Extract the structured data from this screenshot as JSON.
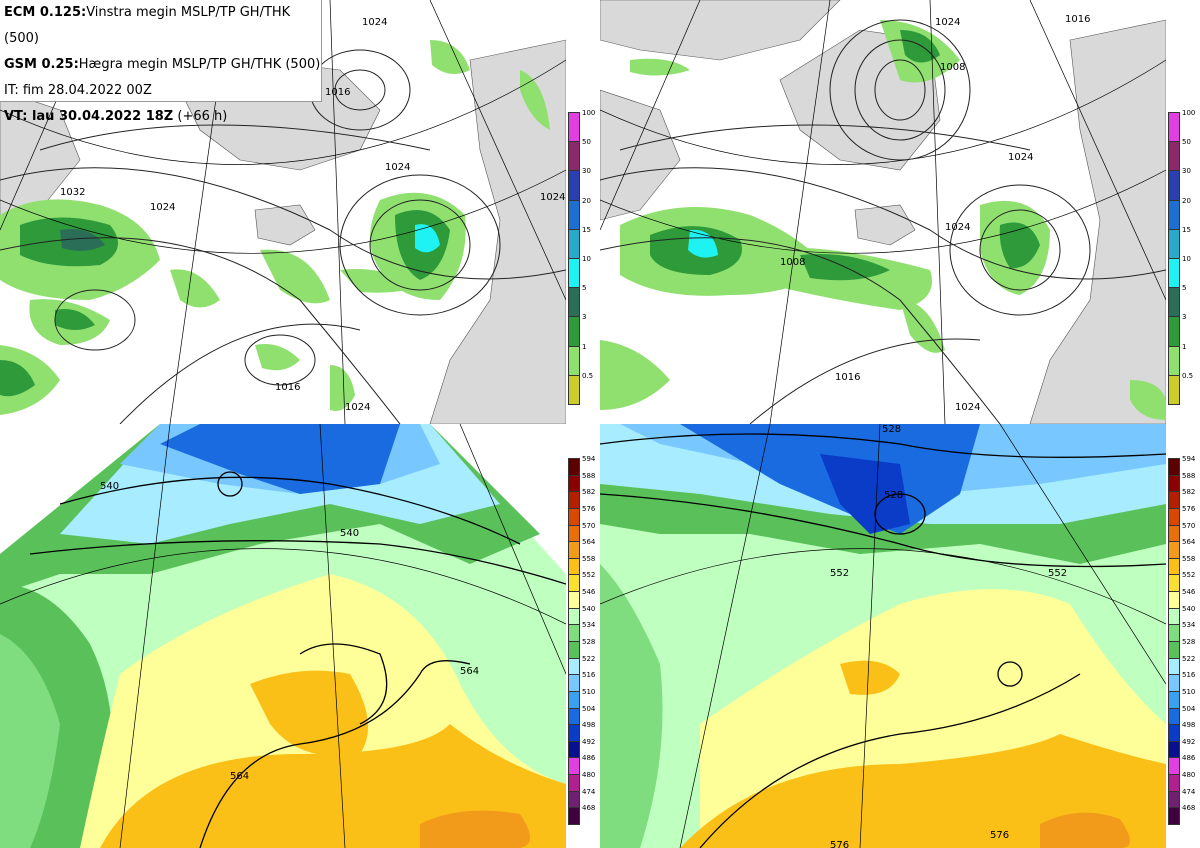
{
  "info": {
    "line1_bold": "ECM 0.125:",
    "line1_text": "Vinstra megin MSLP/TP GH/THK (500)",
    "line2_bold": "GSM 0.25:",
    "line2_text": "Hægra megin MSLP/TP GH/THK (500)",
    "line3_text": "IT: fim 28.04.2022 00Z",
    "line4_bold": "VT: lau 30.04.2022 18Z",
    "line4_text": " (+66 h)"
  },
  "precip_scale": {
    "labels": [
      "100",
      "50",
      "30",
      "20",
      "15",
      "10",
      "5",
      "3",
      "1",
      "0.5"
    ],
    "colors": [
      "#e040e0",
      "#8a2a6a",
      "#2b3fb0",
      "#1f6fd0",
      "#2aa9c8",
      "#1ff2f2",
      "#2a6e58",
      "#2e9a3a",
      "#90e070",
      "#cccc2a"
    ]
  },
  "height_scale": {
    "labels": [
      "594",
      "588",
      "582",
      "576",
      "570",
      "564",
      "558",
      "552",
      "546",
      "540",
      "534",
      "528",
      "522",
      "516",
      "510",
      "504",
      "498",
      "492",
      "486",
      "480",
      "474",
      "468"
    ],
    "colors": [
      "#5c0000",
      "#8b0000",
      "#b22000",
      "#d84800",
      "#e8700a",
      "#f29a1a",
      "#fbc018",
      "#f9e030",
      "#ffff99",
      "#bfffbf",
      "#7fdc7f",
      "#5ac05a",
      "#a8ecff",
      "#78c8ff",
      "#3aa0f0",
      "#1a6ae0",
      "#0a3cc8",
      "#08108f",
      "#e040e0",
      "#b02090",
      "#702070",
      "#400040"
    ]
  },
  "mslp_labels_left": [
    "1024",
    "1016",
    "1032",
    "1024",
    "1024",
    "1016",
    "1024",
    "1024"
  ],
  "mslp_labels_right": [
    "1016",
    "1024",
    "1008",
    "1024",
    "1024",
    "1008",
    "1016",
    "1024"
  ],
  "gh_labels_left": [
    "540",
    "540",
    "564",
    "564"
  ],
  "gh_labels_right": [
    "528",
    "528",
    "552",
    "552",
    "576",
    "576"
  ]
}
